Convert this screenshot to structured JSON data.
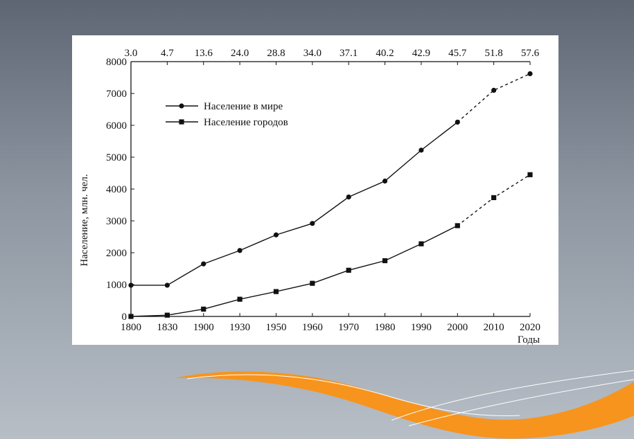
{
  "chart_data": {
    "type": "line",
    "x": [
      1800,
      1830,
      1900,
      1930,
      1950,
      1960,
      1970,
      1980,
      1990,
      2000,
      2010,
      2020
    ],
    "x_tick_labels": [
      "1800",
      "1830",
      "1900",
      "1930",
      "1950",
      "1960",
      "1970",
      "1980",
      "1990",
      "2000",
      "2010",
      "2020"
    ],
    "top_axis_labels": [
      "3.0",
      "4.7",
      "13.6",
      "24.0",
      "28.8",
      "34.0",
      "37.1",
      "40.2",
      "42.9",
      "45.7",
      "51.8",
      "57.6"
    ],
    "y_tick_labels": [
      "0",
      "1000",
      "2000",
      "3000",
      "4000",
      "5000",
      "6000",
      "7000",
      "8000"
    ],
    "ylim": [
      0,
      8000
    ],
    "xlabel": "Годы",
    "ylabel": "Население, млн. чел.",
    "projection_from": 2000,
    "legend_placement": "top-left",
    "grid": false,
    "series": [
      {
        "name": "Население в мире",
        "marker": "circle",
        "values": [
          980,
          980,
          1650,
          2070,
          2560,
          2920,
          3750,
          4250,
          5220,
          6100,
          7100,
          7620
        ]
      },
      {
        "name": "Население городов",
        "marker": "square",
        "values": [
          0,
          40,
          230,
          540,
          780,
          1040,
          1450,
          1750,
          2280,
          2850,
          3730,
          4450
        ]
      }
    ]
  },
  "colors": {
    "line": "#111111",
    "panel": "#ffffff",
    "ribbon_orange": "#f7941d"
  }
}
